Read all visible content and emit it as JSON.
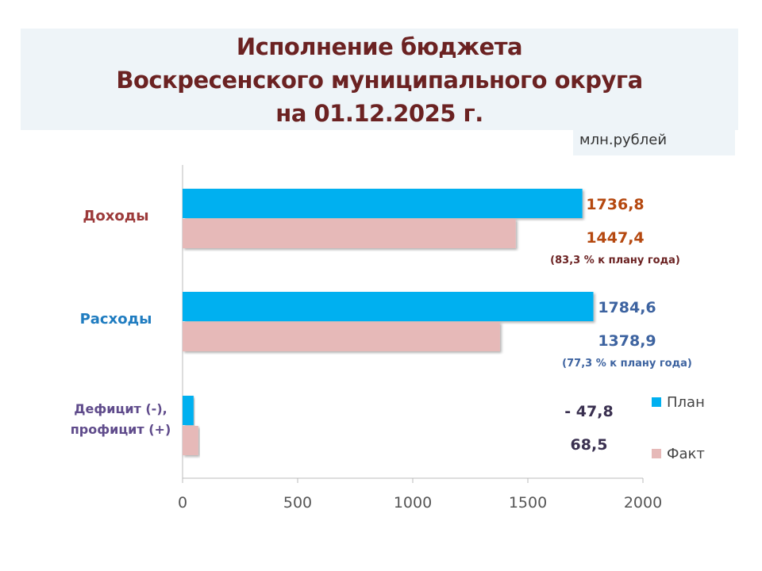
{
  "title_lines": [
    "Исполнение бюджета",
    "Воскресенского муниципального округа",
    "на 01.12.2025 г."
  ],
  "unit": "млн.рублей",
  "chart_data": {
    "type": "bar",
    "orientation": "horizontal",
    "title": "Исполнение бюджета Воскресенского муниципального округа на 01.12.2025 г.",
    "categories": [
      "Доходы",
      "Расходы",
      "Дефицит (-), профицит (+)"
    ],
    "category_label_lines": [
      [
        "Доходы"
      ],
      [
        "Расходы"
      ],
      [
        "Дефицит (-),",
        "профицит (+)"
      ]
    ],
    "category_colors": [
      "#9c3a3a",
      "#1f7cc0",
      "#5f4b8b"
    ],
    "series": [
      {
        "name": "План",
        "values": [
          1736.8,
          1784.6,
          -47.8
        ],
        "color": "#00b0f0"
      },
      {
        "name": "Факт",
        "values": [
          1447.4,
          1378.9,
          68.5
        ],
        "color": "#e6b9b8"
      }
    ],
    "data_labels": [
      {
        "plan": "1736,8",
        "fact": "1447,4",
        "note": "(83,3 % к плану года)",
        "color": "#b5480f",
        "note_color": "#6b2222"
      },
      {
        "plan": "1784,6",
        "fact": "1378,9",
        "note": "(77,3 % к плану года)",
        "color": "#3d63a0",
        "note_color": "#3d63a0"
      },
      {
        "plan": "- 47,8",
        "fact": "68,5",
        "note": "",
        "color": "#3a3050",
        "note_color": "#3a3050"
      }
    ],
    "xlim": [
      0,
      2000
    ],
    "xticks": [
      "0",
      "500",
      "1000",
      "1500",
      "2000"
    ],
    "grid": false,
    "legend": "right"
  }
}
